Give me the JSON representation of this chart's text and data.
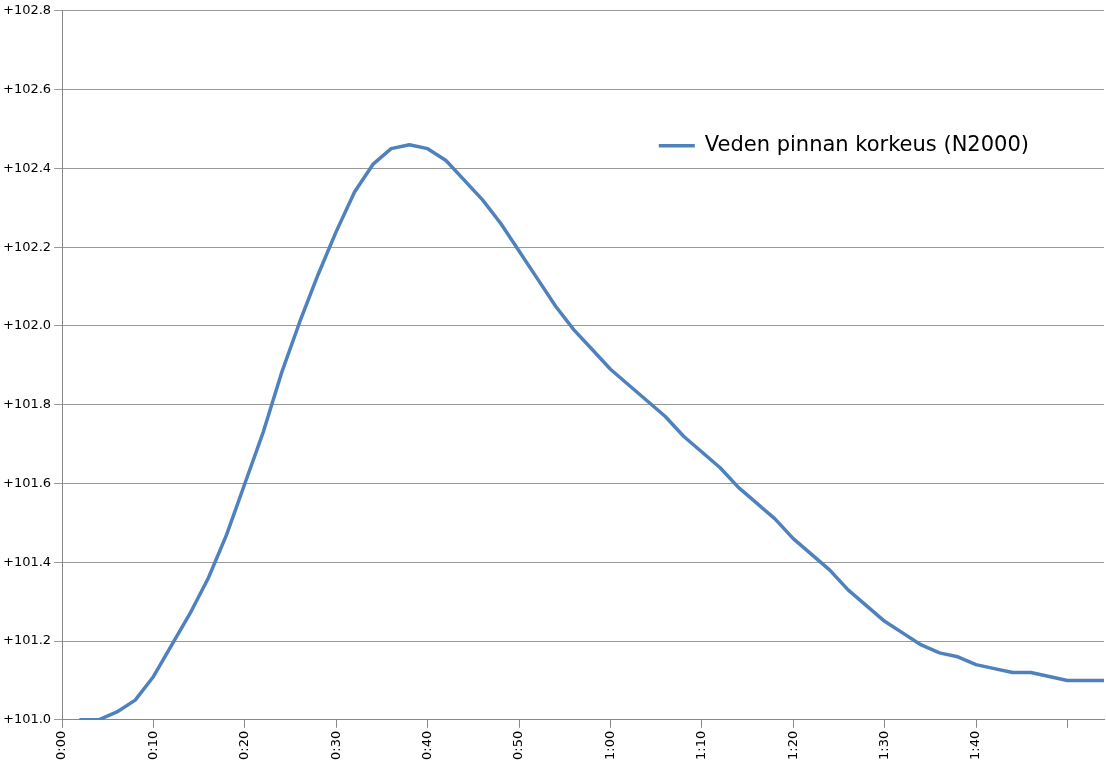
{
  "chart_data": {
    "type": "line",
    "x": [
      0.0333,
      0.0667,
      0.1,
      0.1333,
      0.1667,
      0.2,
      0.2333,
      0.2667,
      0.3,
      0.3333,
      0.3667,
      0.4,
      0.4333,
      0.4667,
      0.5,
      0.5333,
      0.5667,
      0.6,
      0.6333,
      0.6667,
      0.7,
      0.7333,
      0.7667,
      0.8,
      0.8333,
      0.8667,
      0.9,
      0.9333,
      0.9667,
      1.0,
      1.0333,
      1.0667,
      1.1,
      1.1333,
      1.1667,
      1.2,
      1.2333,
      1.2667,
      1.3,
      1.3333,
      1.3667,
      1.4,
      1.4333,
      1.4667,
      1.5,
      1.5333,
      1.5667,
      1.6,
      1.6333,
      1.6667,
      1.7,
      1.7333,
      1.7667,
      1.8,
      1.8333,
      1.8667,
      1.9
    ],
    "series": [
      {
        "name": "Veden pinnan korkeus (N2000)",
        "color": "#4f81bd",
        "values": [
          101.0,
          101.0,
          101.02,
          101.05,
          101.11,
          101.19,
          101.27,
          101.36,
          101.47,
          101.6,
          101.73,
          101.88,
          102.01,
          102.13,
          102.24,
          102.34,
          102.41,
          102.45,
          102.46,
          102.45,
          102.42,
          102.37,
          102.32,
          102.26,
          102.19,
          102.12,
          102.05,
          101.99,
          101.94,
          101.89,
          101.85,
          101.81,
          101.77,
          101.72,
          101.68,
          101.64,
          101.59,
          101.55,
          101.51,
          101.46,
          101.42,
          101.38,
          101.33,
          101.29,
          101.25,
          101.22,
          101.19,
          101.17,
          101.16,
          101.14,
          101.13,
          101.12,
          101.12,
          101.11,
          101.1,
          101.1,
          101.1
        ]
      }
    ],
    "xlim": [
      0,
      1.9
    ],
    "xticks": [
      {
        "value": 0,
        "label": "0:00"
      },
      {
        "value": 0.1667,
        "label": "0:10"
      },
      {
        "value": 0.3333,
        "label": "0:20"
      },
      {
        "value": 0.5,
        "label": "0:30"
      },
      {
        "value": 0.6667,
        "label": "0:40"
      },
      {
        "value": 0.8333,
        "label": "0:50"
      },
      {
        "value": 1.0,
        "label": "1:00"
      },
      {
        "value": 1.1667,
        "label": "1:10"
      },
      {
        "value": 1.3333,
        "label": "1:20"
      },
      {
        "value": 1.5,
        "label": "1:30"
      },
      {
        "value": 1.6667,
        "label": "1:40"
      },
      {
        "value": 1.8333,
        "label": null
      }
    ],
    "ylim": [
      101.0,
      102.8
    ],
    "yticks": [
      {
        "value": 101.0,
        "label": "+101.0"
      },
      {
        "value": 101.2,
        "label": "+101.2"
      },
      {
        "value": 101.4,
        "label": "+101.4"
      },
      {
        "value": 101.6,
        "label": "+101.6"
      },
      {
        "value": 101.8,
        "label": "+101.8"
      },
      {
        "value": 102.0,
        "label": "+102.0"
      },
      {
        "value": 102.2,
        "label": "+102.2"
      },
      {
        "value": 102.4,
        "label": "+102.4"
      },
      {
        "value": 102.6,
        "label": "+102.6"
      },
      {
        "value": 102.8,
        "label": "+102.8"
      }
    ],
    "grid": "y",
    "legend": "top right",
    "marker": "none",
    "line_style": "solid"
  }
}
